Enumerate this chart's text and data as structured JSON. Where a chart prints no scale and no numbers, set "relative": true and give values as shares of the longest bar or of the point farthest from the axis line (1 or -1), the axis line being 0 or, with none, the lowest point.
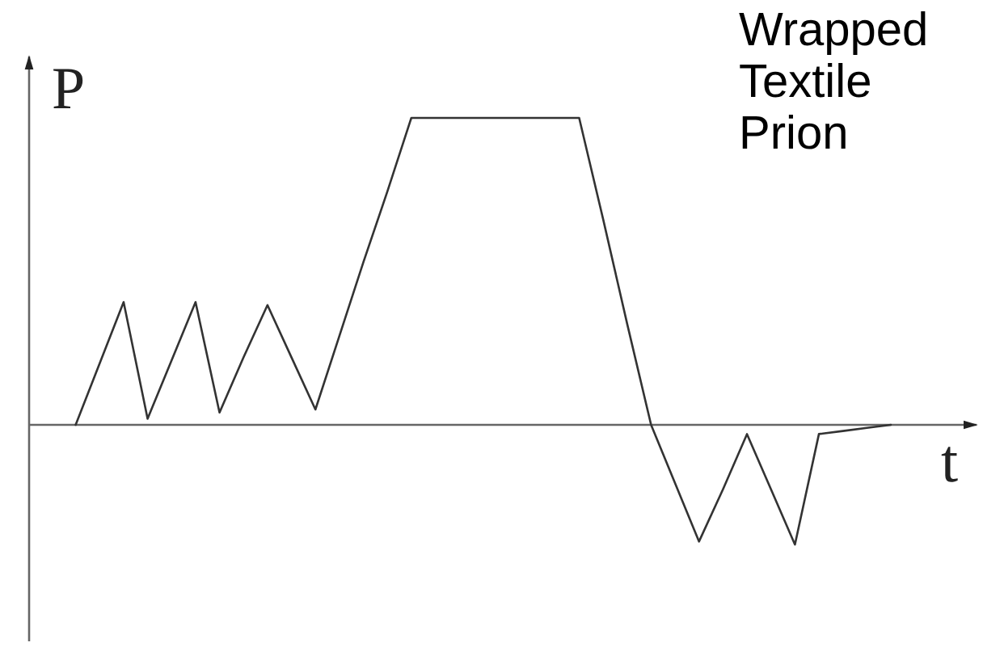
{
  "chart_data": {
    "type": "line",
    "title": "Wrapped Textile Prion",
    "xlabel": "t",
    "ylabel": "P",
    "relative": true,
    "line_style": "solid",
    "categories": [
      null,
      null,
      null,
      null,
      null,
      null,
      null,
      null,
      null,
      null,
      null,
      null,
      null,
      null,
      null,
      null,
      null,
      null,
      null,
      null,
      null,
      null,
      null,
      null,
      null,
      null,
      null,
      null,
      null,
      null,
      null,
      null,
      null,
      null,
      null
    ],
    "series": [
      {
        "color": "#333333",
        "values": [
          0,
          0.2,
          0.4,
          0.02,
          0.21,
          0.4,
          0.04,
          0.22,
          0.39,
          0.22,
          0.05,
          0.29,
          0.53,
          0.76,
          1,
          1,
          1,
          1,
          1,
          1,
          1,
          1,
          0.67,
          0.33,
          0,
          -0.19,
          -0.38,
          -0.21,
          -0.03,
          -0.21,
          -0.39,
          -0.03,
          -0.02,
          -0.01,
          0
        ]
      }
    ]
  }
}
